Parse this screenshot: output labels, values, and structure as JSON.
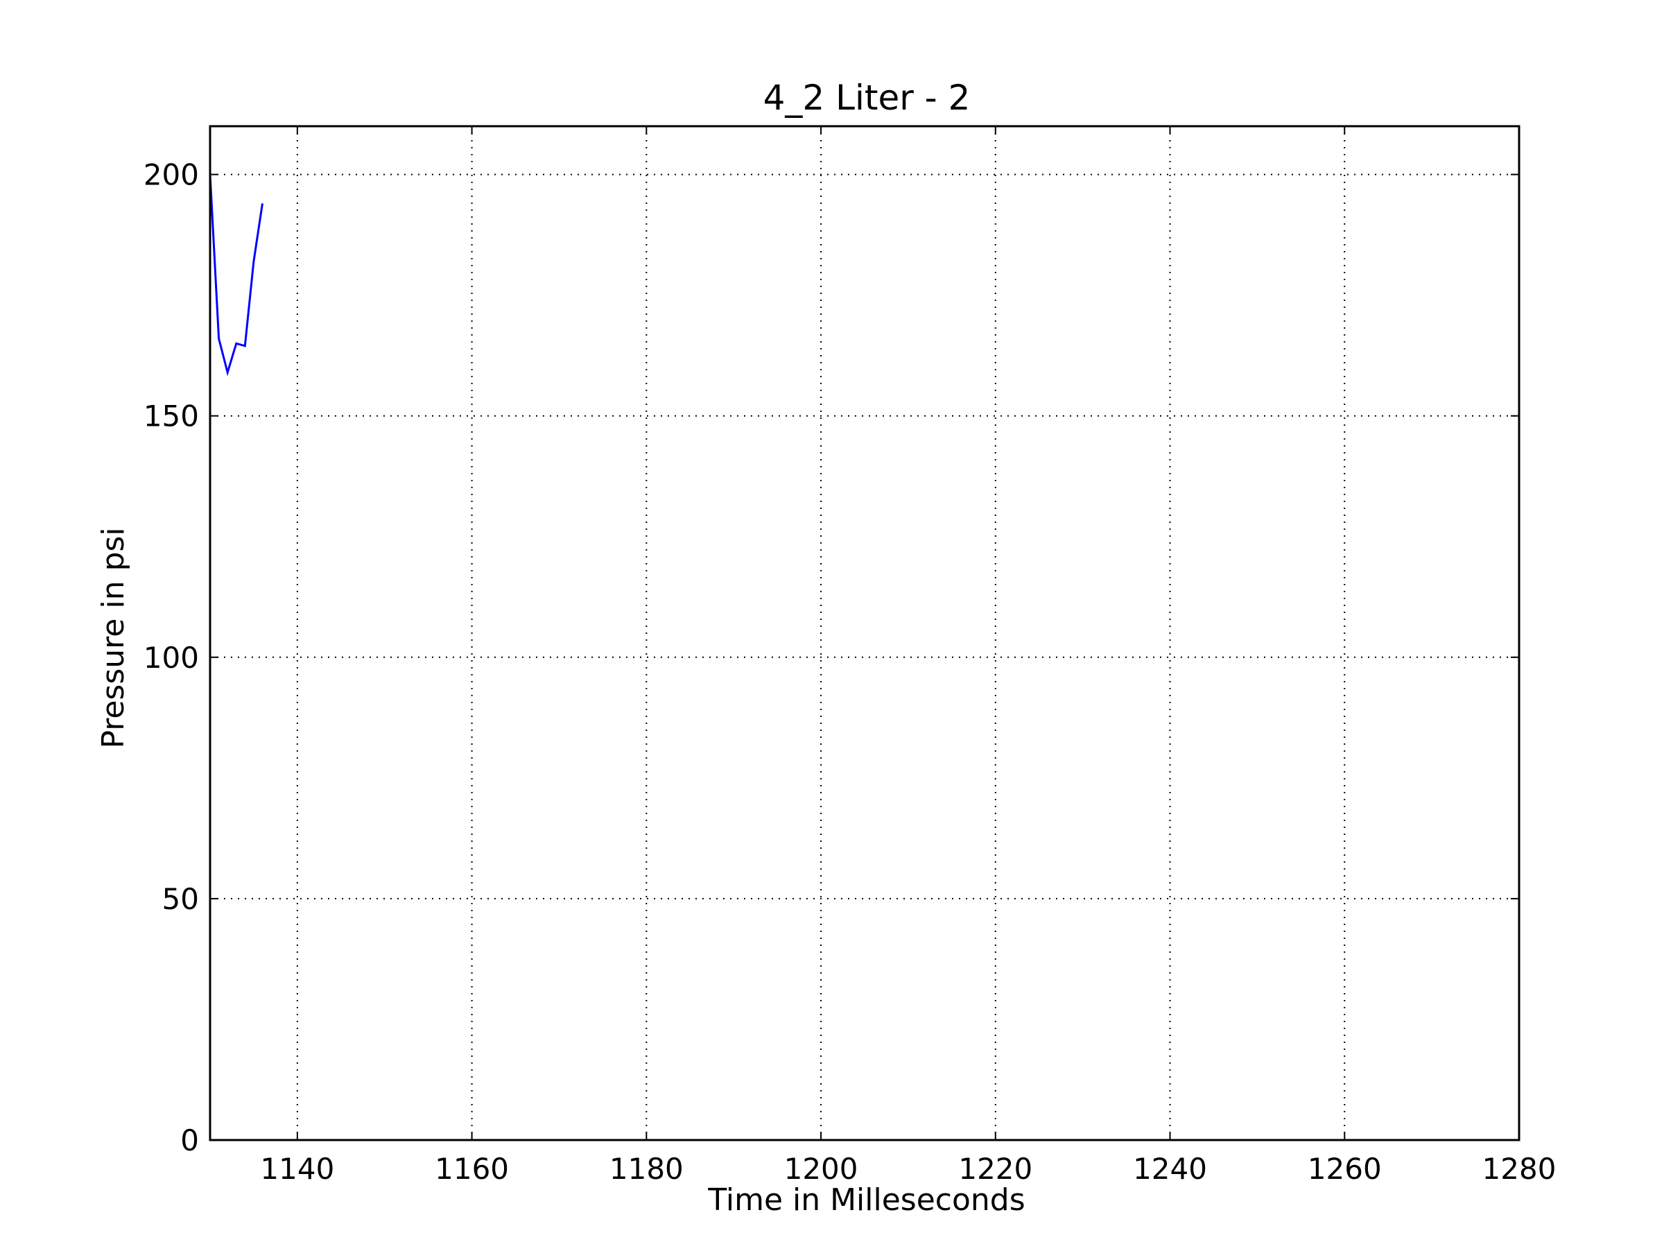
{
  "chart_data": {
    "type": "line",
    "title": "4_2 Liter - 2",
    "xlabel": "Time in Milleseconds",
    "ylabel": "Pressure in psi",
    "xlim": [
      1130,
      1280
    ],
    "ylim": [
      0,
      210
    ],
    "xticks": [
      1140,
      1160,
      1180,
      1200,
      1220,
      1240,
      1260,
      1280
    ],
    "yticks": [
      0,
      50,
      100,
      150,
      200
    ],
    "grid": true,
    "grid_style": "dotted",
    "series": [
      {
        "color": "#0000ff",
        "x": [
          1130,
          1131,
          1132,
          1133,
          1134,
          1135,
          1136
        ],
        "y": [
          200,
          166,
          159,
          165,
          164.5,
          182,
          194
        ]
      }
    ]
  }
}
